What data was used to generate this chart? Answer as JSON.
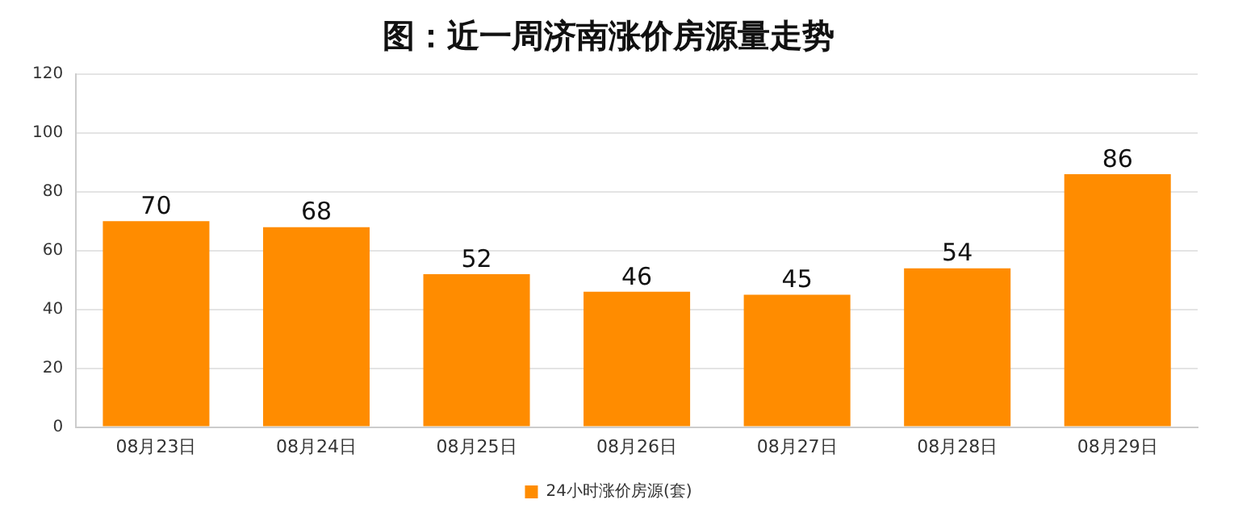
{
  "chart_data": {
    "type": "bar",
    "title": "图：近一周济南涨价房源量走势",
    "categories": [
      "08月23日",
      "08月24日",
      "08月25日",
      "08月26日",
      "08月27日",
      "08月28日",
      "08月29日"
    ],
    "series": [
      {
        "name": "24小时涨价房源(套)",
        "color": "#ff8c00",
        "values": [
          70,
          68,
          52,
          46,
          45,
          54,
          86
        ]
      }
    ],
    "ylim": [
      0,
      120
    ],
    "yticks": [
      0,
      20,
      40,
      60,
      80,
      100,
      120
    ],
    "grid": "y",
    "legend": "bottom",
    "data_labels": true
  }
}
